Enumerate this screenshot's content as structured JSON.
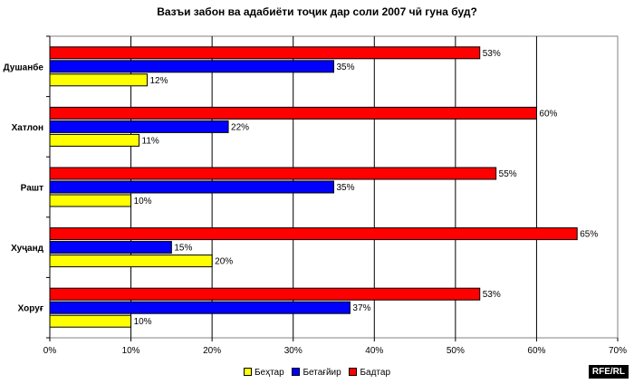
{
  "chart_data": {
    "type": "bar",
    "orientation": "horizontal",
    "title": "Вазъи забон ва адабиёти тоҷик дар соли 2007 чӣ гуна буд?",
    "categories": [
      "Душанбе",
      "Хатлон",
      "Рашт",
      "Хуҷанд",
      "Хоруғ"
    ],
    "series": [
      {
        "name": "Бадтар",
        "color": "#ff0000",
        "values": [
          53,
          60,
          55,
          65,
          53
        ],
        "labels": [
          "53%",
          "60%",
          "55%",
          "65%",
          "53%"
        ]
      },
      {
        "name": "Бетағйир",
        "color": "#0000ff",
        "values": [
          35,
          22,
          35,
          15,
          37
        ],
        "labels": [
          "35%",
          "22%",
          "35%",
          "15%",
          "37%"
        ]
      },
      {
        "name": "Беҳтар",
        "color": "#ffff00",
        "values": [
          12,
          11,
          10,
          20,
          10
        ],
        "labels": [
          "12%",
          "11%",
          "10%",
          "20%",
          "10%"
        ]
      }
    ],
    "xlim": [
      0,
      70
    ],
    "x_ticks": [
      "0%",
      "10%",
      "20%",
      "30%",
      "40%",
      "50%",
      "60%",
      "70%"
    ],
    "grid": true,
    "legend_position": "bottom",
    "legend_order": [
      "Беҳтар",
      "Бетағйир",
      "Бадтар"
    ]
  },
  "watermark": "RFE/RL"
}
